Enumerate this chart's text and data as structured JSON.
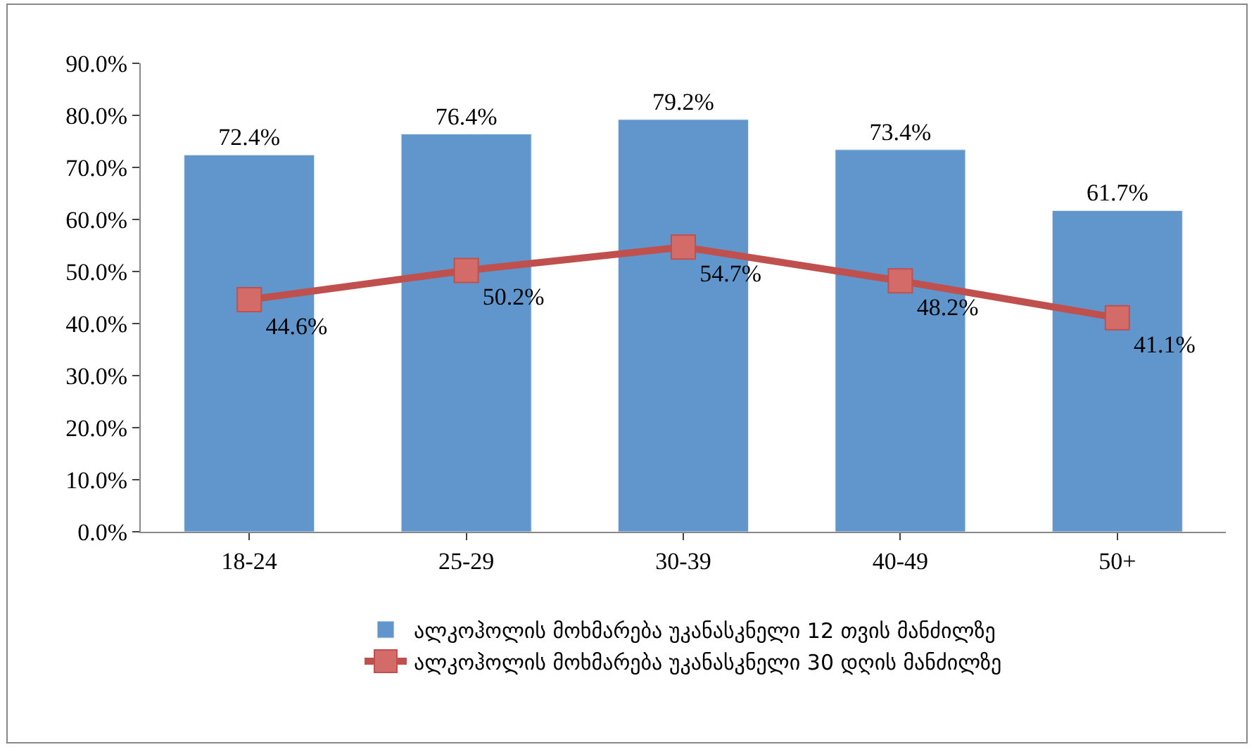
{
  "chart_data": {
    "type": "bar",
    "categories": [
      "18-24",
      "25-29",
      "30-39",
      "40-49",
      "50+"
    ],
    "series": [
      {
        "name": "ალკოჰოლის მოხმარება უკანასკნელი 12 თვის მანძილზე",
        "color": "#6096cb",
        "values": [
          72.4,
          76.4,
          79.2,
          73.4,
          61.7
        ],
        "value_labels": [
          "72.4%",
          "76.4%",
          "79.2%",
          "73.4%",
          "61.7%"
        ]
      },
      {
        "name": "ალკოჰოლის მოხმარება უკანასკნელი 30 დღის მანძილზე",
        "type": "line",
        "color": "#c0504d",
        "marker": "square",
        "values": [
          44.6,
          50.2,
          54.7,
          48.2,
          41.1
        ],
        "value_labels": [
          "44.6%",
          "50.2%",
          "54.7%",
          "48.2%",
          "41.1%"
        ]
      }
    ],
    "ylim": [
      0,
      90
    ],
    "yticks": [
      {
        "value": 0,
        "label": "0.0%"
      },
      {
        "value": 10,
        "label": "10.0%"
      },
      {
        "value": 20,
        "label": "20.0%"
      },
      {
        "value": 30,
        "label": "30.0%"
      },
      {
        "value": 40,
        "label": "40.0%"
      },
      {
        "value": 50,
        "label": "50.0%"
      },
      {
        "value": 60,
        "label": "60.0%"
      },
      {
        "value": 70,
        "label": "70.0%"
      },
      {
        "value": 80,
        "label": "80.0%"
      },
      {
        "value": 90,
        "label": "90.0%"
      }
    ],
    "legend": "bottom"
  }
}
